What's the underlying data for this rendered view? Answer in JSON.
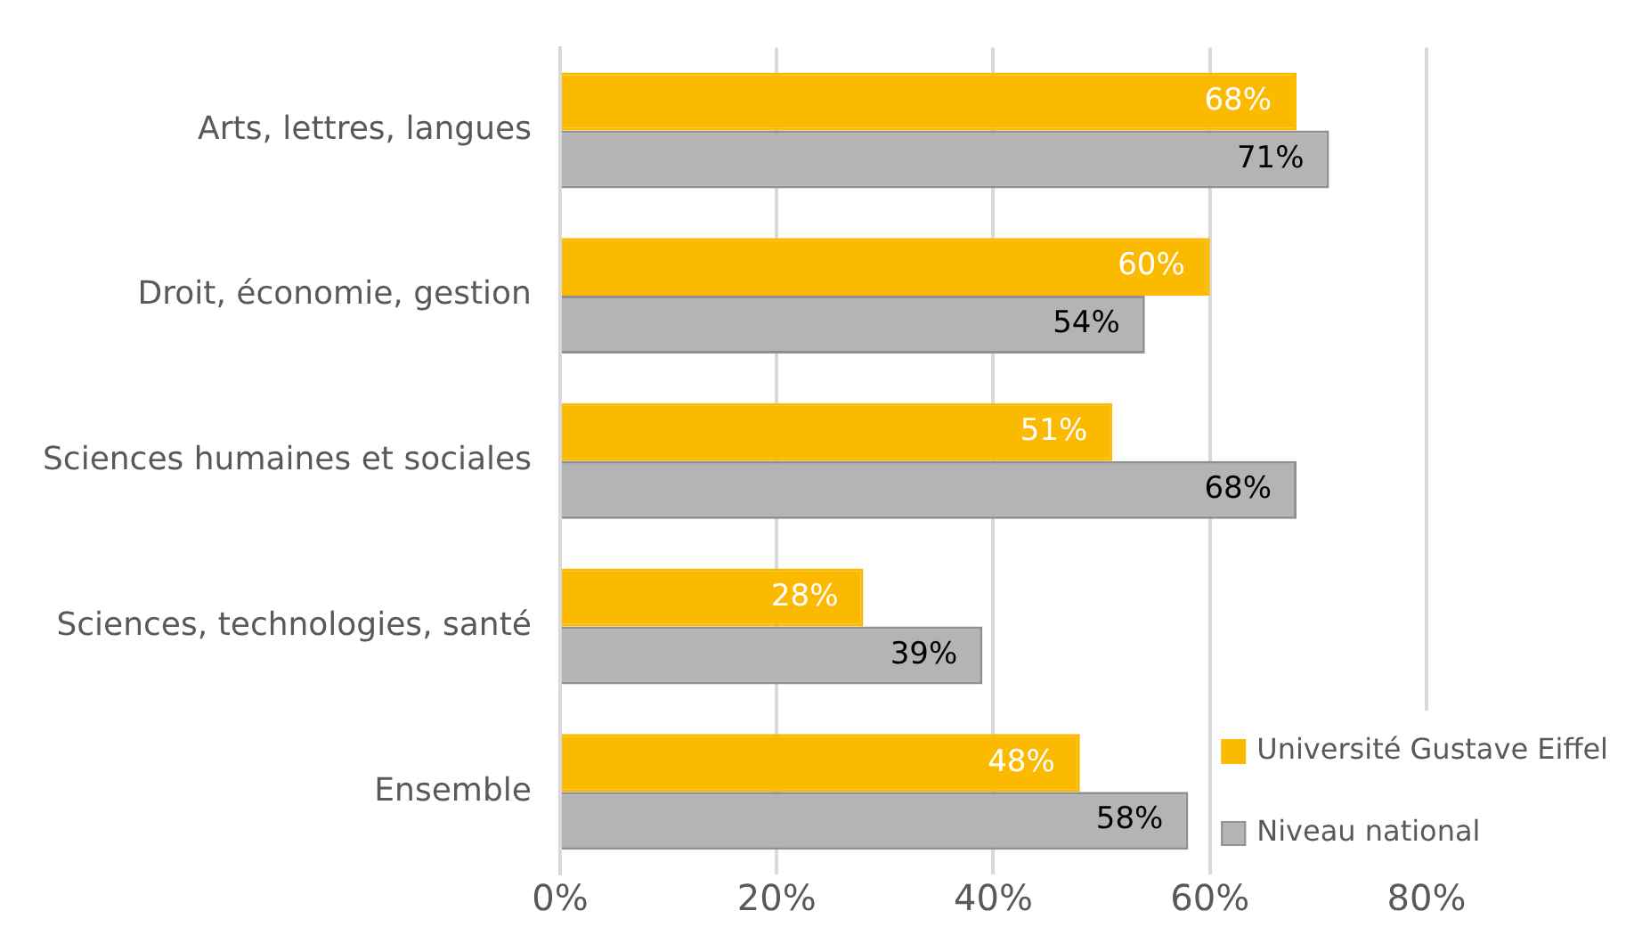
{
  "chart_data": {
    "type": "bar",
    "orientation": "horizontal",
    "categories": [
      "Arts, lettres, langues",
      "Droit, économie, gestion",
      "Sciences humaines et sociales",
      "Sciences, technologies, santé",
      "Ensemble"
    ],
    "series": [
      {
        "name": "Université Gustave Eiffel",
        "color": "#fbb900",
        "values": [
          68,
          60,
          51,
          28,
          48
        ],
        "value_labels": [
          "68%",
          "60%",
          "51%",
          "28%",
          "48%"
        ]
      },
      {
        "name": "Niveau national",
        "color": "#b4b4b4",
        "values": [
          71,
          54,
          68,
          39,
          58
        ],
        "value_labels": [
          "71%",
          "54%",
          "68%",
          "39%",
          "58%"
        ]
      }
    ],
    "xlim": [
      0,
      80
    ],
    "xticks": [
      {
        "value": 0,
        "label": "0%"
      },
      {
        "value": 20,
        "label": "20%"
      },
      {
        "value": 40,
        "label": "40%"
      },
      {
        "value": 60,
        "label": "60%"
      },
      {
        "value": 80,
        "label": "80%"
      }
    ],
    "grid": "x",
    "legend": "bottom right"
  }
}
